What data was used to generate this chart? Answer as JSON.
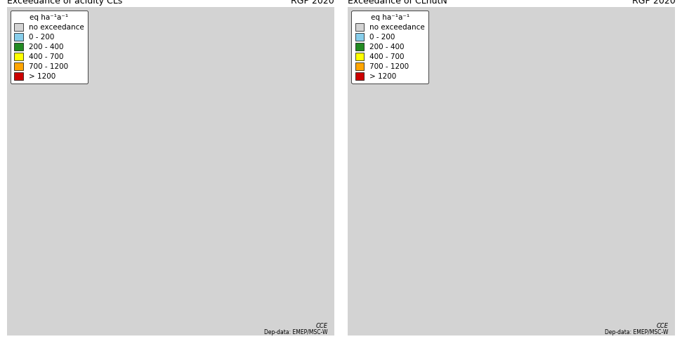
{
  "left_title": "Exceedance of acidity CLs",
  "right_title": "Exceedance of CLnutN",
  "subtitle_right": "RGP 2020",
  "unit_label": "eq ha⁻¹a⁻¹",
  "legend_labels": [
    "no exceedance",
    "0 - 200",
    "200 - 400",
    "400 - 700",
    "700 - 1200",
    "> 1200"
  ],
  "legend_colors": [
    "#d3d3d3",
    "#87ceeb",
    "#228b22",
    "#ffff00",
    "#ffa500",
    "#cc0000"
  ],
  "background_color": "#ffffff",
  "map_background": "#d3d3d3",
  "ocean_color": "#ffffff",
  "border_color": "#000000",
  "annotation_cce": "CCE",
  "annotation_dep": "Dep-data: EMEP/MSC-W",
  "fig_width": 9.71,
  "fig_height": 4.83,
  "dpi": 100
}
